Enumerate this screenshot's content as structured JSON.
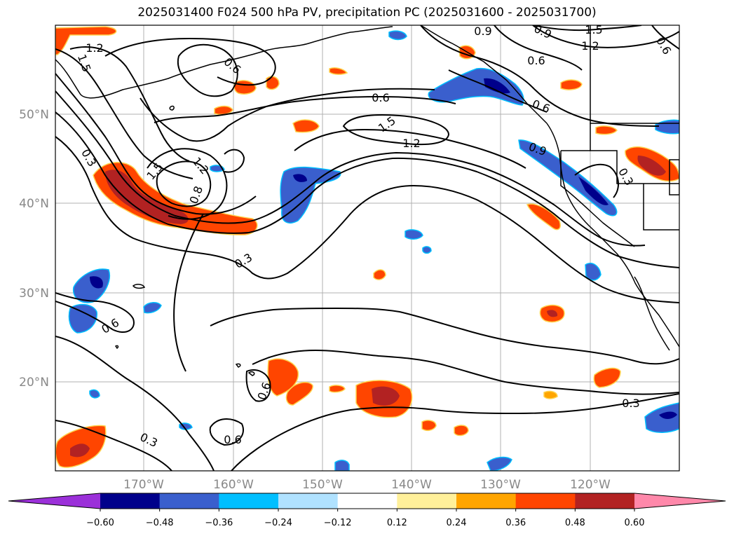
{
  "title": "2025031400 F024 500 hPa PV, precipitation PC (2025031600 - 2025031700)",
  "lat_labels": [
    "50°N",
    "40°N",
    "30°N",
    "20°N"
  ],
  "lon_labels": [
    "170°W",
    "160°W",
    "150°W",
    "140°W",
    "130°W",
    "120°W"
  ],
  "contour_labels": [
    "1.2",
    "1.5",
    "0.6",
    "0.9",
    "0.9",
    "1.5",
    "1.2",
    "0.6",
    "0.6",
    "0.6",
    "0.9",
    "0.6",
    "1.5",
    "1.2",
    "0.3",
    "1.5",
    "1.2",
    "0.8",
    "0.3",
    "0.3",
    "0.6",
    "0.6",
    "0.3",
    "0.6",
    "0.3"
  ],
  "colorbar": {
    "ticks": [
      "−0.60",
      "−0.48",
      "−0.36",
      "−0.24",
      "−0.12",
      "0.12",
      "0.24",
      "0.36",
      "0.48",
      "0.60"
    ],
    "colors": [
      "#9b30d9",
      "#00008b",
      "#3a5fcd",
      "#00bfff",
      "#b0e2ff",
      "#ffffff",
      "#fff09a",
      "#ffa500",
      "#ff4500",
      "#b22222",
      "#ff88aa"
    ]
  },
  "precip_colors": {
    "neg_strong": "#00008b",
    "neg_mid": "#3a5fcd",
    "neg_light": "#00bfff",
    "pos_light": "#ffa500",
    "pos_mid": "#ff4500",
    "pos_strong": "#b22222"
  }
}
